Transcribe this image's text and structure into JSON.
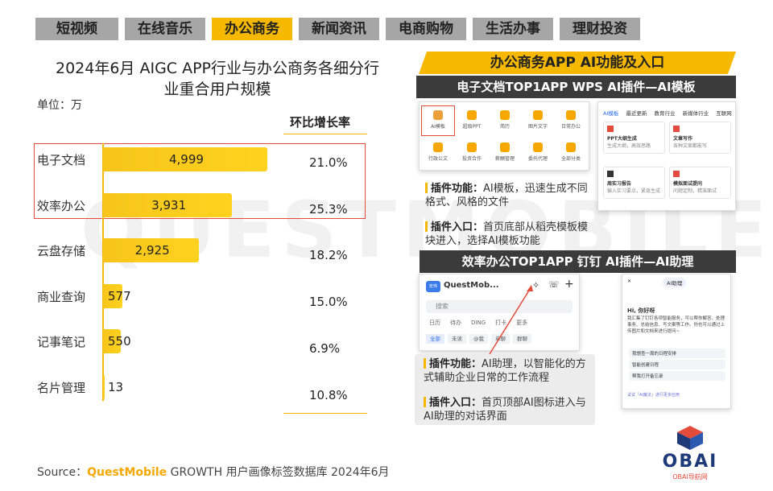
{
  "tabs": [
    "短视频",
    "在线音乐",
    "办公商务",
    "新闻资讯",
    "电商购物",
    "生活办事",
    "理财投资"
  ],
  "active_tab": "办公商务",
  "watermark": "QUESTMOBILE",
  "chart_data": {
    "type": "bar",
    "orientation": "horizontal",
    "title": "2024年6月 AIGC APP行业与办公商务各细分行业重合用户规模",
    "unit": "单位：万",
    "categories": [
      "电子文档",
      "效率办公",
      "云盘存储",
      "商业查询",
      "记事笔记",
      "名片管理"
    ],
    "values": [
      4999,
      3931,
      2925,
      577,
      550,
      13
    ],
    "value_labels": [
      "4,999",
      "3,931",
      "2,925",
      "577",
      "550",
      "13"
    ],
    "growth_header": "环比增长率",
    "growth": [
      "21.0%",
      "25.3%",
      "18.2%",
      "15.0%",
      "6.9%",
      "10.8%"
    ],
    "highlighted_categories": [
      "电子文档",
      "效率办公"
    ],
    "bar_color": "#f7c51a",
    "grid": false
  },
  "right": {
    "title": "办公商务APP AI功能及入口",
    "section1": {
      "title": "电子文档TOP1APP WPS AI插件—AI模板",
      "feature_label": "插件功能：",
      "feature_text": "AI模板，迅速生成不同格式、风格的文件",
      "entry_label": "插件入口：",
      "entry_text": "首页底部从稻壳模板模块进入，选择AI模板功能",
      "icons": [
        "AI模板",
        "超级PPT",
        "简历",
        "图片文字",
        "日常办公",
        "行政公文",
        "投资合作",
        "薪酬管理",
        "委托代理",
        "全部分类"
      ],
      "tabs": [
        "AI模板",
        "最近更新",
        "教育行业",
        "新媒体行业",
        "互联网"
      ],
      "cards": [
        {
          "title": "PPT大纲生成",
          "desc": "生成大纲，高效思路"
        },
        {
          "title": "文章写作",
          "desc": "各种文案都能写"
        },
        {
          "title": "周实习报告",
          "desc": "输入实习要点，紧急生成"
        },
        {
          "title": "模拟面试提问",
          "desc": "问题定制，精准面试"
        }
      ]
    },
    "section2": {
      "title": "效率办公TOP1APP 钉钉 AI插件—AI助理",
      "feature_label": "插件功能：",
      "feature_text": "AI助理，以智能化的方式辅助企业日常的工作流程",
      "entry_label": "插件入口：",
      "entry_text": "首页顶部AI图标进入与AI助理的对话界面",
      "app_name": "QuestMob...",
      "search": "搜索",
      "nav": [
        "日历",
        "待办",
        "DING",
        "打卡",
        "更多"
      ],
      "filters": [
        "全部",
        "未读",
        "@我",
        "单聊",
        "群聊"
      ],
      "assistant_title": "AI助理",
      "greeting": "Hi, 你好呀",
      "assistant_text": "我汇集了钉钉各项智能服务，可以帮你解答、处理事务、总结信息、写文案等工作。你也可以通过上传图片和文档来进行提问~",
      "suggestions": [
        "我想查一周的日程安排",
        "智能创建日程",
        "帮我打开备忘录"
      ],
      "footer": "试试『AI魔法』进行更多应用"
    }
  },
  "source": {
    "prefix": "Source：",
    "brand": "QuestMobile",
    "text": " GROWTH 用户画像标签数据库 2024年6月"
  },
  "logo": {
    "main": "OBAI",
    "sub": "OBAI导航网"
  }
}
